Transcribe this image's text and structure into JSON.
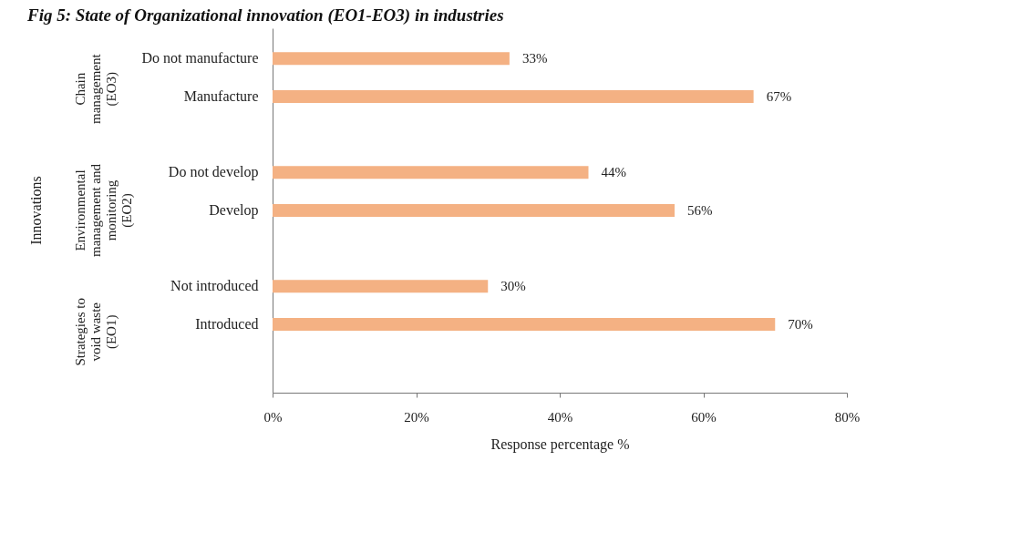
{
  "chart_data": {
    "type": "bar",
    "orientation": "horizontal",
    "title": "Fig 5: State of Organizational innovation (EO1-EO3) in industries",
    "xlabel": "Response percentage %",
    "categories": [
      "Do not manufacture",
      "Manufacture",
      "Do not develop",
      "Develop",
      "Not introduced",
      "Introduced"
    ],
    "values": [
      33,
      67,
      44,
      56,
      30,
      70
    ],
    "value_labels": [
      "33%",
      "67%",
      "44%",
      "56%",
      "30%",
      "70%"
    ],
    "color": "#f4b183",
    "xlim": [
      0,
      80
    ],
    "xticks": [
      {
        "value": 0,
        "label": "0%"
      },
      {
        "value": 20,
        "label": "20%"
      },
      {
        "value": 40,
        "label": "40%"
      },
      {
        "value": 60,
        "label": "60%"
      },
      {
        "value": 80,
        "label": "80%"
      }
    ],
    "annotations": [
      "Innovations",
      "Chain management (EO3)",
      "Environmental management and monitoring (EO2)",
      "Strategies to void waste (EO1)"
    ],
    "grid": false
  }
}
